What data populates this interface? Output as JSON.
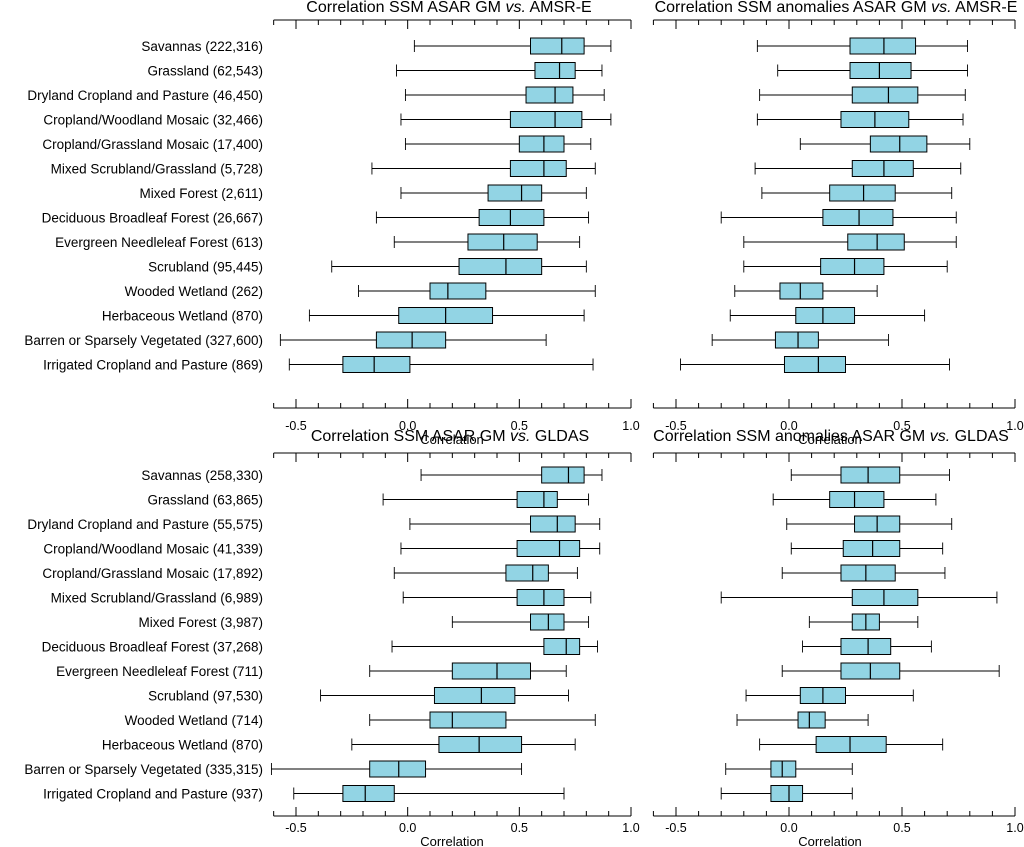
{
  "chart_data": [
    {
      "type": "boxplot",
      "title": "Correlation SSM ASAR GM vs. AMSR-E",
      "title_prefix": "Correlation SSM ASAR GM ",
      "title_vs": "vs.",
      "title_suffix": " AMSR-E",
      "xlabel": "Correlation",
      "xlim": [
        -0.6,
        1.0
      ],
      "xticks": [
        -0.5,
        0.0,
        0.5,
        1.0
      ],
      "xtick_labels": [
        "-0.5",
        "0.0",
        "0.5",
        "1.0"
      ],
      "categories": [
        "Savannas (222,316)",
        "Grassland (62,543)",
        "Dryland Cropland and Pasture (46,450)",
        "Cropland/Woodland Mosaic (32,466)",
        "Cropland/Grassland Mosaic (17,400)",
        "Mixed Scrubland/Grassland (5,728)",
        "Mixed Forest (2,611)",
        "Deciduous Broadleaf Forest (26,667)",
        "Evergreen Needleleaf Forest (613)",
        "Scrubland (95,445)",
        "Wooded Wetland (262)",
        "Herbaceous Wetland (870)",
        "Barren or Sparsely Vegetated (327,600)",
        "Irrigated Cropland and Pasture (869)"
      ],
      "stats": [
        {
          "whislo": 0.03,
          "q1": 0.55,
          "med": 0.69,
          "q3": 0.79,
          "whishi": 0.91
        },
        {
          "whislo": -0.05,
          "q1": 0.57,
          "med": 0.68,
          "q3": 0.75,
          "whishi": 0.87
        },
        {
          "whislo": -0.01,
          "q1": 0.53,
          "med": 0.66,
          "q3": 0.74,
          "whishi": 0.88
        },
        {
          "whislo": -0.03,
          "q1": 0.46,
          "med": 0.66,
          "q3": 0.78,
          "whishi": 0.91
        },
        {
          "whislo": -0.01,
          "q1": 0.5,
          "med": 0.61,
          "q3": 0.7,
          "whishi": 0.82
        },
        {
          "whislo": -0.16,
          "q1": 0.46,
          "med": 0.61,
          "q3": 0.71,
          "whishi": 0.84
        },
        {
          "whislo": -0.03,
          "q1": 0.36,
          "med": 0.51,
          "q3": 0.6,
          "whishi": 0.8
        },
        {
          "whislo": -0.14,
          "q1": 0.32,
          "med": 0.46,
          "q3": 0.61,
          "whishi": 0.81
        },
        {
          "whislo": -0.06,
          "q1": 0.27,
          "med": 0.43,
          "q3": 0.58,
          "whishi": 0.77
        },
        {
          "whislo": -0.34,
          "q1": 0.23,
          "med": 0.44,
          "q3": 0.6,
          "whishi": 0.8
        },
        {
          "whislo": -0.22,
          "q1": 0.1,
          "med": 0.18,
          "q3": 0.35,
          "whishi": 0.84
        },
        {
          "whislo": -0.44,
          "q1": -0.04,
          "med": 0.17,
          "q3": 0.38,
          "whishi": 0.79
        },
        {
          "whislo": -0.57,
          "q1": -0.14,
          "med": 0.02,
          "q3": 0.17,
          "whishi": 0.62
        },
        {
          "whislo": -0.53,
          "q1": -0.29,
          "med": -0.15,
          "q3": 0.01,
          "whishi": 0.83
        }
      ]
    },
    {
      "type": "boxplot",
      "title": "Correlation SSM anomalies ASAR GM vs. AMSR-E",
      "title_prefix": "Correlation SSM anomalies ASAR GM ",
      "title_vs": "vs.",
      "title_suffix": " AMSR-E",
      "xlabel": "Correlation",
      "xlim": [
        -0.6,
        1.0
      ],
      "xticks": [
        -0.5,
        0.0,
        0.5,
        1.0
      ],
      "xtick_labels": [
        "-0.5",
        "0.0",
        "0.5",
        "1.0"
      ],
      "stats": [
        {
          "whislo": -0.14,
          "q1": 0.27,
          "med": 0.42,
          "q3": 0.56,
          "whishi": 0.79
        },
        {
          "whislo": -0.05,
          "q1": 0.27,
          "med": 0.4,
          "q3": 0.54,
          "whishi": 0.79
        },
        {
          "whislo": -0.13,
          "q1": 0.28,
          "med": 0.44,
          "q3": 0.57,
          "whishi": 0.78
        },
        {
          "whislo": -0.14,
          "q1": 0.23,
          "med": 0.38,
          "q3": 0.53,
          "whishi": 0.77
        },
        {
          "whislo": 0.05,
          "q1": 0.36,
          "med": 0.49,
          "q3": 0.61,
          "whishi": 0.8
        },
        {
          "whislo": -0.15,
          "q1": 0.28,
          "med": 0.42,
          "q3": 0.55,
          "whishi": 0.76
        },
        {
          "whislo": -0.12,
          "q1": 0.18,
          "med": 0.33,
          "q3": 0.47,
          "whishi": 0.72
        },
        {
          "whislo": -0.3,
          "q1": 0.15,
          "med": 0.31,
          "q3": 0.46,
          "whishi": 0.74
        },
        {
          "whislo": -0.2,
          "q1": 0.26,
          "med": 0.39,
          "q3": 0.51,
          "whishi": 0.74
        },
        {
          "whislo": -0.2,
          "q1": 0.14,
          "med": 0.29,
          "q3": 0.42,
          "whishi": 0.7
        },
        {
          "whislo": -0.24,
          "q1": -0.04,
          "med": 0.05,
          "q3": 0.15,
          "whishi": 0.39
        },
        {
          "whislo": -0.26,
          "q1": 0.03,
          "med": 0.15,
          "q3": 0.29,
          "whishi": 0.6
        },
        {
          "whislo": -0.34,
          "q1": -0.06,
          "med": 0.04,
          "q3": 0.13,
          "whishi": 0.44
        },
        {
          "whislo": -0.48,
          "q1": -0.02,
          "med": 0.13,
          "q3": 0.25,
          "whishi": 0.71
        }
      ]
    },
    {
      "type": "boxplot",
      "title": "Correlation SSM ASAR GM vs. GLDAS",
      "title_prefix": "Correlation SSM ASAR GM ",
      "title_vs": "vs.",
      "title_suffix": " GLDAS",
      "xlabel": "Correlation",
      "xlim": [
        -0.6,
        1.0
      ],
      "xticks": [
        -0.5,
        0.0,
        0.5,
        1.0
      ],
      "xtick_labels": [
        "-0.5",
        "0.0",
        "0.5",
        "1.0"
      ],
      "categories": [
        "Savannas (258,330)",
        "Grassland (63,865)",
        "Dryland Cropland and Pasture (55,575)",
        "Cropland/Woodland Mosaic (41,339)",
        "Cropland/Grassland Mosaic (17,892)",
        "Mixed Scrubland/Grassland (6,989)",
        "Mixed Forest (3,987)",
        "Deciduous Broadleaf Forest (37,268)",
        "Evergreen Needleleaf Forest (711)",
        "Scrubland (97,530)",
        "Wooded Wetland (714)",
        "Herbaceous Wetland (870)",
        "Barren or Sparsely Vegetated (335,315)",
        "Irrigated Cropland and Pasture (937)"
      ],
      "stats": [
        {
          "whislo": 0.06,
          "q1": 0.6,
          "med": 0.72,
          "q3": 0.79,
          "whishi": 0.87
        },
        {
          "whislo": -0.11,
          "q1": 0.49,
          "med": 0.61,
          "q3": 0.67,
          "whishi": 0.81
        },
        {
          "whislo": 0.01,
          "q1": 0.55,
          "med": 0.67,
          "q3": 0.75,
          "whishi": 0.86
        },
        {
          "whislo": -0.03,
          "q1": 0.49,
          "med": 0.68,
          "q3": 0.77,
          "whishi": 0.86
        },
        {
          "whislo": -0.06,
          "q1": 0.44,
          "med": 0.56,
          "q3": 0.63,
          "whishi": 0.76
        },
        {
          "whislo": -0.02,
          "q1": 0.49,
          "med": 0.61,
          "q3": 0.7,
          "whishi": 0.82
        },
        {
          "whislo": 0.2,
          "q1": 0.55,
          "med": 0.63,
          "q3": 0.7,
          "whishi": 0.81
        },
        {
          "whislo": -0.07,
          "q1": 0.61,
          "med": 0.71,
          "q3": 0.77,
          "whishi": 0.85
        },
        {
          "whislo": -0.17,
          "q1": 0.2,
          "med": 0.4,
          "q3": 0.55,
          "whishi": 0.71
        },
        {
          "whislo": -0.39,
          "q1": 0.12,
          "med": 0.33,
          "q3": 0.48,
          "whishi": 0.72
        },
        {
          "whislo": -0.17,
          "q1": 0.1,
          "med": 0.2,
          "q3": 0.44,
          "whishi": 0.84
        },
        {
          "whislo": -0.25,
          "q1": 0.14,
          "med": 0.32,
          "q3": 0.51,
          "whishi": 0.75
        },
        {
          "whislo": -0.61,
          "q1": -0.17,
          "med": -0.04,
          "q3": 0.08,
          "whishi": 0.51
        },
        {
          "whislo": -0.51,
          "q1": -0.29,
          "med": -0.19,
          "q3": -0.06,
          "whishi": 0.7
        }
      ]
    },
    {
      "type": "boxplot",
      "title": "Correlation SSM anomalies ASAR GM vs. GLDAS",
      "title_prefix": "Correlation SSM anomalies ASAR GM ",
      "title_vs": "vs.",
      "title_suffix": " GLDAS",
      "xlabel": "Correlation",
      "xlim": [
        -0.6,
        1.0
      ],
      "xticks": [
        -0.5,
        0.0,
        0.5,
        1.0
      ],
      "xtick_labels": [
        "-0.5",
        "0.0",
        "0.5",
        "1.0"
      ],
      "stats": [
        {
          "whislo": 0.01,
          "q1": 0.23,
          "med": 0.35,
          "q3": 0.49,
          "whishi": 0.71
        },
        {
          "whislo": -0.07,
          "q1": 0.18,
          "med": 0.29,
          "q3": 0.42,
          "whishi": 0.65
        },
        {
          "whislo": -0.01,
          "q1": 0.29,
          "med": 0.39,
          "q3": 0.49,
          "whishi": 0.72
        },
        {
          "whislo": 0.01,
          "q1": 0.24,
          "med": 0.37,
          "q3": 0.49,
          "whishi": 0.68
        },
        {
          "whislo": -0.03,
          "q1": 0.23,
          "med": 0.34,
          "q3": 0.47,
          "whishi": 0.69
        },
        {
          "whislo": -0.3,
          "q1": 0.28,
          "med": 0.42,
          "q3": 0.57,
          "whishi": 0.92
        },
        {
          "whislo": 0.09,
          "q1": 0.28,
          "med": 0.34,
          "q3": 0.4,
          "whishi": 0.57
        },
        {
          "whislo": 0.06,
          "q1": 0.23,
          "med": 0.35,
          "q3": 0.45,
          "whishi": 0.63
        },
        {
          "whislo": -0.03,
          "q1": 0.23,
          "med": 0.36,
          "q3": 0.49,
          "whishi": 0.93
        },
        {
          "whislo": -0.19,
          "q1": 0.05,
          "med": 0.15,
          "q3": 0.25,
          "whishi": 0.55
        },
        {
          "whislo": -0.23,
          "q1": 0.04,
          "med": 0.09,
          "q3": 0.16,
          "whishi": 0.35
        },
        {
          "whislo": -0.13,
          "q1": 0.12,
          "med": 0.27,
          "q3": 0.43,
          "whishi": 0.68
        },
        {
          "whislo": -0.28,
          "q1": -0.08,
          "med": -0.03,
          "q3": 0.03,
          "whishi": 0.28
        },
        {
          "whislo": -0.3,
          "q1": -0.08,
          "med": 0.0,
          "q3": 0.06,
          "whishi": 0.28
        }
      ]
    }
  ],
  "colors": {
    "box_fill": "#92d4e4",
    "stroke": "#000000"
  }
}
